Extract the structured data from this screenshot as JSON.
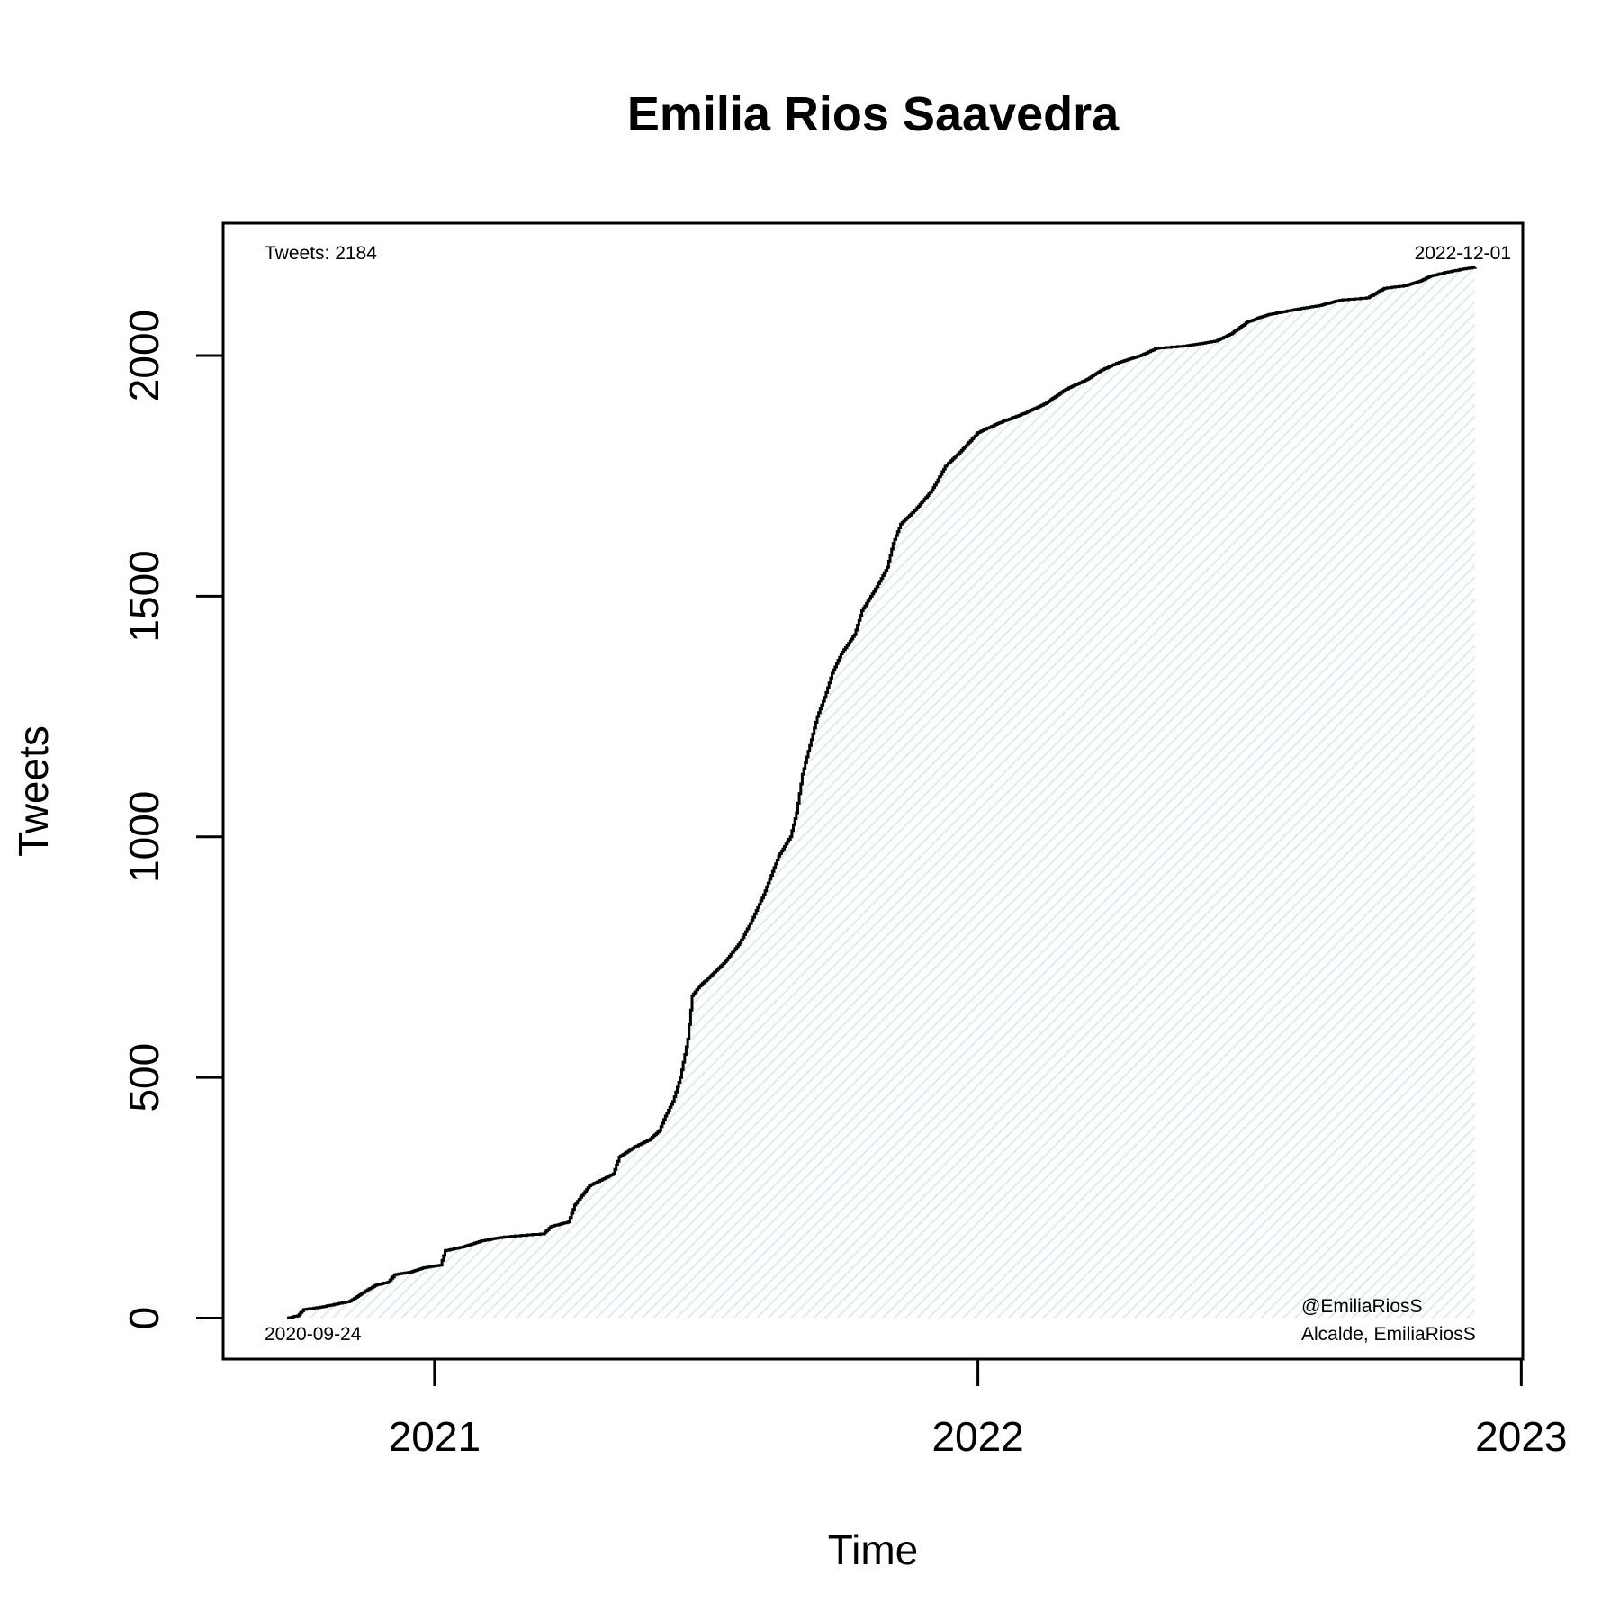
{
  "chart_data": {
    "type": "area",
    "title": "Emilia Rios Saavedra",
    "xlabel": "Time",
    "ylabel": "Tweets",
    "x_ticks": [
      "2021",
      "2022",
      "2023"
    ],
    "y_ticks": [
      0,
      500,
      1000,
      1500,
      2000
    ],
    "xlim": [
      "2020-08-12",
      "2023-01-02"
    ],
    "ylim": [
      -85,
      2275
    ],
    "grid": false,
    "fill_color": "#e6f3f5",
    "line_color": "#000000",
    "annotations": {
      "tweet_count": "Tweets: 2184",
      "start_date": "2020-09-24",
      "end_date": "2022-12-01",
      "handle": "@EmiliaRiosS",
      "subtitle": "Alcalde, EmiliaRiosS"
    },
    "series": [
      {
        "points": [
          [
            "2020-09-24",
            0
          ],
          [
            "2020-10-01",
            5
          ],
          [
            "2020-10-05",
            18
          ],
          [
            "2020-10-15",
            22
          ],
          [
            "2020-10-25",
            28
          ],
          [
            "2020-11-05",
            35
          ],
          [
            "2020-11-15",
            55
          ],
          [
            "2020-11-22",
            68
          ],
          [
            "2020-12-01",
            75
          ],
          [
            "2020-12-05",
            90
          ],
          [
            "2020-12-15",
            95
          ],
          [
            "2020-12-25",
            105
          ],
          [
            "2021-01-05",
            110
          ],
          [
            "2021-01-08",
            140
          ],
          [
            "2021-01-20",
            148
          ],
          [
            "2021-02-01",
            160
          ],
          [
            "2021-02-15",
            168
          ],
          [
            "2021-03-01",
            172
          ],
          [
            "2021-03-15",
            175
          ],
          [
            "2021-03-20",
            190
          ],
          [
            "2021-04-01",
            200
          ],
          [
            "2021-04-05",
            235
          ],
          [
            "2021-04-15",
            275
          ],
          [
            "2021-04-25",
            290
          ],
          [
            "2021-05-01",
            300
          ],
          [
            "2021-05-05",
            335
          ],
          [
            "2021-05-15",
            355
          ],
          [
            "2021-05-25",
            370
          ],
          [
            "2021-06-01",
            390
          ],
          [
            "2021-06-05",
            420
          ],
          [
            "2021-06-10",
            450
          ],
          [
            "2021-06-15",
            500
          ],
          [
            "2021-06-20",
            580
          ],
          [
            "2021-06-23",
            670
          ],
          [
            "2021-06-28",
            690
          ],
          [
            "2021-07-05",
            710
          ],
          [
            "2021-07-15",
            740
          ],
          [
            "2021-07-25",
            780
          ],
          [
            "2021-08-01",
            820
          ],
          [
            "2021-08-10",
            880
          ],
          [
            "2021-08-20",
            960
          ],
          [
            "2021-08-28",
            1000
          ],
          [
            "2021-09-01",
            1050
          ],
          [
            "2021-09-05",
            1130
          ],
          [
            "2021-09-10",
            1190
          ],
          [
            "2021-09-15",
            1250
          ],
          [
            "2021-09-20",
            1290
          ],
          [
            "2021-09-25",
            1340
          ],
          [
            "2021-10-01",
            1380
          ],
          [
            "2021-10-10",
            1420
          ],
          [
            "2021-10-15",
            1470
          ],
          [
            "2021-10-25",
            1520
          ],
          [
            "2021-11-01",
            1560
          ],
          [
            "2021-11-05",
            1610
          ],
          [
            "2021-11-10",
            1650
          ],
          [
            "2021-11-20",
            1680
          ],
          [
            "2021-12-01",
            1720
          ],
          [
            "2021-12-10",
            1770
          ],
          [
            "2021-12-20",
            1800
          ],
          [
            "2022-01-01",
            1840
          ],
          [
            "2022-01-15",
            1860
          ],
          [
            "2022-02-01",
            1880
          ],
          [
            "2022-02-15",
            1900
          ],
          [
            "2022-03-01",
            1930
          ],
          [
            "2022-03-15",
            1950
          ],
          [
            "2022-03-25",
            1970
          ],
          [
            "2022-04-05",
            1985
          ],
          [
            "2022-04-20",
            2000
          ],
          [
            "2022-05-01",
            2015
          ],
          [
            "2022-05-20",
            2020
          ],
          [
            "2022-06-10",
            2030
          ],
          [
            "2022-06-20",
            2045
          ],
          [
            "2022-07-01",
            2070
          ],
          [
            "2022-07-15",
            2085
          ],
          [
            "2022-08-01",
            2095
          ],
          [
            "2022-08-20",
            2105
          ],
          [
            "2022-09-01",
            2115
          ],
          [
            "2022-09-20",
            2120
          ],
          [
            "2022-10-01",
            2140
          ],
          [
            "2022-10-15",
            2145
          ],
          [
            "2022-10-25",
            2155
          ],
          [
            "2022-11-01",
            2165
          ],
          [
            "2022-11-10",
            2172
          ],
          [
            "2022-11-20",
            2178
          ],
          [
            "2022-12-01",
            2184
          ]
        ]
      }
    ]
  }
}
